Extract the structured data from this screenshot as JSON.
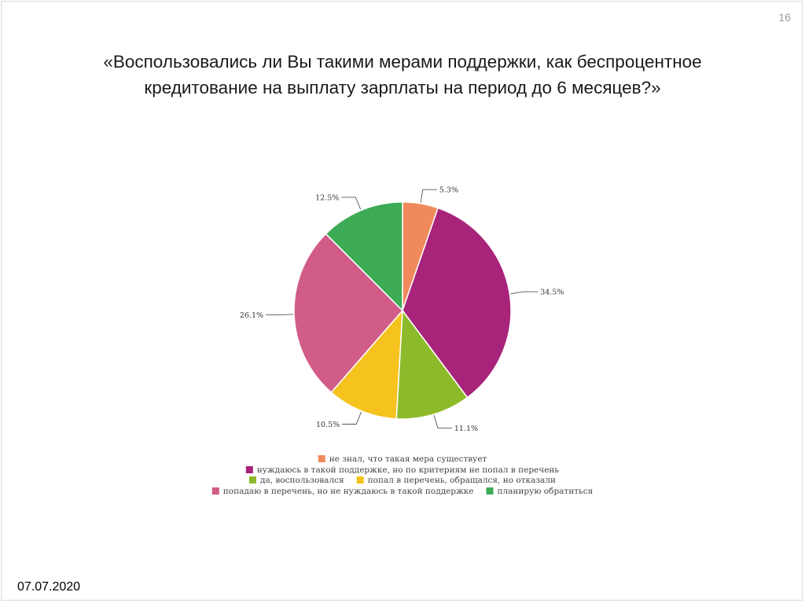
{
  "slide": {
    "page_number": "16",
    "title_lines": [
      "«Воспользовались ли Вы такими мерами поддержки, как беспроцентное",
      "кредитование на выплату зарплаты на период до 6 месяцев?»"
    ],
    "date": "07.07.2020"
  },
  "chart_data": {
    "type": "pie",
    "start_angle_deg": 0,
    "direction": "clockwise",
    "legend_position": "bottom",
    "slices": [
      {
        "label": "не знал, что такая мера существует",
        "value": 5.3,
        "value_label": "5.3%",
        "color": "#F08A5D"
      },
      {
        "label": "нуждаюсь в такой поддержке, но по критериям не попал в перечень",
        "value": 34.5,
        "value_label": "34.5%",
        "color": "#A8237A"
      },
      {
        "label": "да, воспользовался",
        "value": 11.1,
        "value_label": "11.1%",
        "color": "#8DBA2A"
      },
      {
        "label": "попал в перечень, обращался, но отказали",
        "value": 10.5,
        "value_label": "10.5%",
        "color": "#F6C21E"
      },
      {
        "label": "попадаю в перечень, но не нуждаюсь в такой поддержке",
        "value": 26.1,
        "value_label": "26.1%",
        "color": "#D05C87"
      },
      {
        "label": "планирую обратиться",
        "value": 12.5,
        "value_label": "12.5%",
        "color": "#3DAA55"
      }
    ]
  }
}
